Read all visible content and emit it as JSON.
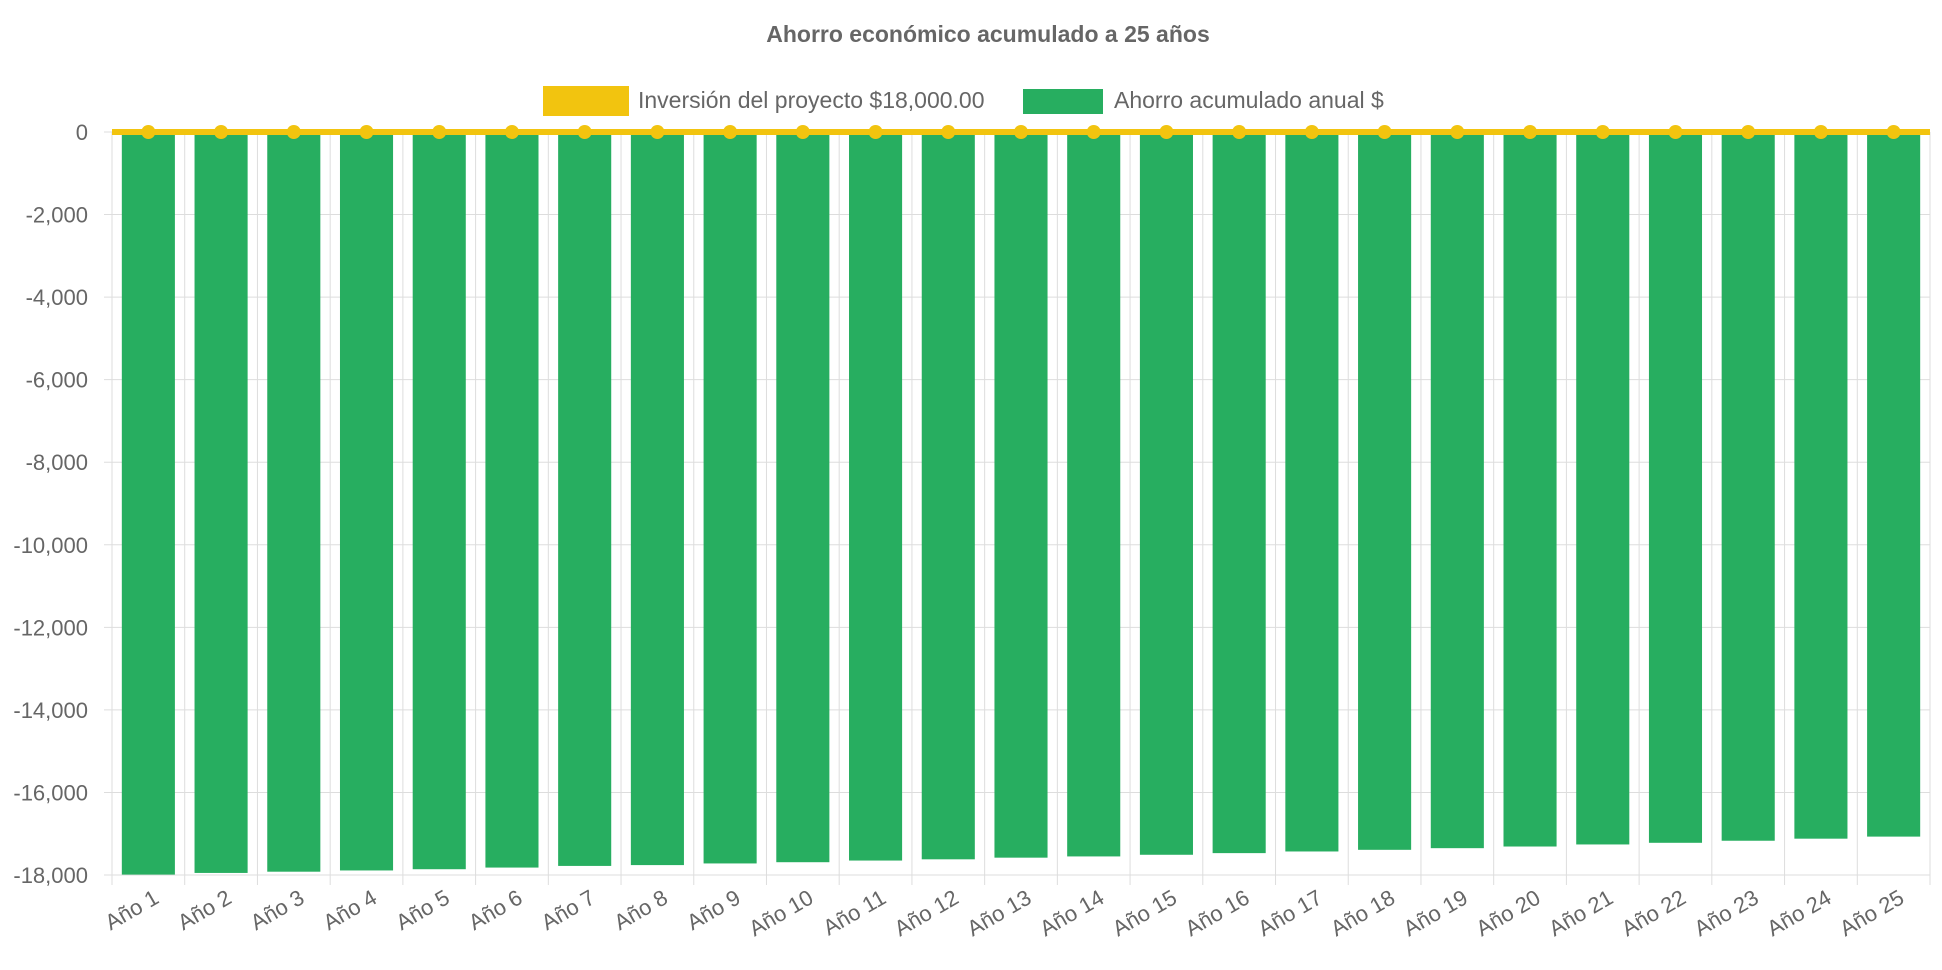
{
  "chart_data": {
    "type": "bar",
    "title": "Ahorro económico acumulado a 25 años",
    "categories": [
      "Año 1",
      "Año 2",
      "Año 3",
      "Año 4",
      "Año 5",
      "Año 6",
      "Año 7",
      "Año 8",
      "Año 9",
      "Año 10",
      "Año 11",
      "Año 12",
      "Año 13",
      "Año 14",
      "Año 15",
      "Año 16",
      "Año 17",
      "Año 18",
      "Año 19",
      "Año 20",
      "Año 21",
      "Año 22",
      "Año 23",
      "Año 24",
      "Año 25"
    ],
    "series": [
      {
        "name": "Inversión del proyecto $18,000.00",
        "type": "line",
        "color": "#f2c40f",
        "values": [
          0,
          0,
          0,
          0,
          0,
          0,
          0,
          0,
          0,
          0,
          0,
          0,
          0,
          0,
          0,
          0,
          0,
          0,
          0,
          0,
          0,
          0,
          0,
          0,
          0
        ]
      },
      {
        "name": "Ahorro acumulado anual $",
        "type": "bar",
        "color": "#27ae60",
        "values": [
          -17990,
          -17950,
          -17920,
          -17890,
          -17860,
          -17820,
          -17780,
          -17760,
          -17720,
          -17690,
          -17650,
          -17620,
          -17580,
          -17550,
          -17510,
          -17470,
          -17430,
          -17390,
          -17350,
          -17310,
          -17260,
          -17220,
          -17170,
          -17120,
          -17070
        ]
      }
    ],
    "ylim": [
      -18000,
      0
    ],
    "yticks": [
      0,
      -2000,
      -4000,
      -6000,
      -8000,
      -10000,
      -12000,
      -14000,
      -16000,
      -18000
    ],
    "ytick_labels": [
      "0",
      "-2,000",
      "-4,000",
      "-6,000",
      "-8,000",
      "-10,000",
      "-12,000",
      "-14,000",
      "-16,000",
      "-18,000"
    ],
    "xlabel": "",
    "ylabel": "",
    "grid": true,
    "legend_position": "top-center"
  }
}
